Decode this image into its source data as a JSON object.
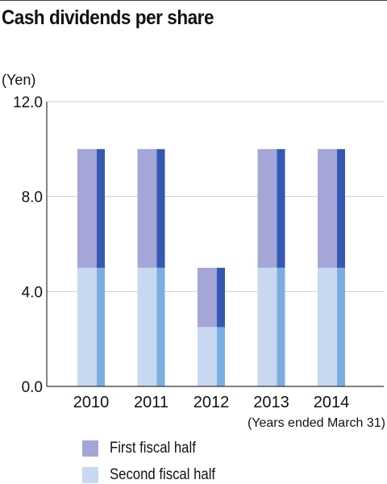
{
  "title": "Cash dividends per share",
  "unit_label": "(Yen)",
  "footnote": "(Years ended March 31)",
  "colors": {
    "first_half": "#a3a6d6",
    "first_half_edge": "#3558b4",
    "second_half": "#c8d8f0",
    "second_half_edge": "#7aaee2",
    "grid": "#d0d0d0",
    "axis": "#333333"
  },
  "chart_data": {
    "type": "bar",
    "stacked": true,
    "title": "Cash dividends per share",
    "ylabel": "(Yen)",
    "xlabel": "",
    "categories": [
      "2010",
      "2011",
      "2012",
      "2013",
      "2014"
    ],
    "series": [
      {
        "name": "Second fiscal half",
        "values": [
          5.0,
          5.0,
          2.5,
          5.0,
          5.0
        ]
      },
      {
        "name": "First fiscal half",
        "values": [
          5.0,
          5.0,
          2.5,
          5.0,
          5.0
        ]
      }
    ],
    "ylim": [
      0,
      12
    ],
    "yticks": [
      "0.0",
      "4.0",
      "8.0",
      "12.0"
    ],
    "ytick_values": [
      0,
      4,
      8,
      12
    ],
    "grid": true,
    "legend_position": "bottom"
  },
  "legend": [
    {
      "label": "First fiscal half",
      "color": "#a3a6d6"
    },
    {
      "label": "Second fiscal half",
      "color": "#c8d8f0"
    }
  ]
}
